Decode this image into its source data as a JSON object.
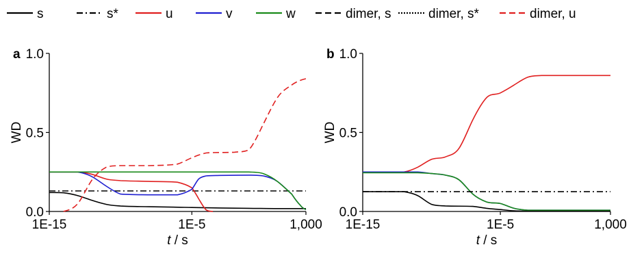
{
  "legend": [
    {
      "label": "s",
      "color": "#000000",
      "dash": "solid"
    },
    {
      "label": "s*",
      "color": "#000000",
      "dash": "dashdot"
    },
    {
      "label": "u",
      "color": "#e01f1f",
      "dash": "solid"
    },
    {
      "label": "v",
      "color": "#1f1fd0",
      "dash": "solid"
    },
    {
      "label": "w",
      "color": "#1a8a1a",
      "dash": "solid"
    },
    {
      "label": "dimer, s",
      "color": "#000000",
      "dash": "dashed"
    },
    {
      "label": "dimer, s*",
      "color": "#000000",
      "dash": "dotted"
    },
    {
      "label": "dimer, u",
      "color": "#e01f1f",
      "dash": "dashed"
    }
  ],
  "chart_data": [
    {
      "panel_label": "a",
      "type": "line",
      "xlabel_italic": "t",
      "xlabel_rest": " / s",
      "ylabel": "WD",
      "xscale": "log",
      "xlim": [
        1e-15,
        1000
      ],
      "ylim": [
        0,
        1
      ],
      "xticks": [
        1e-15,
        1e-05,
        1000
      ],
      "xtick_labels": [
        "1E-15",
        "1E-5",
        "1,000"
      ],
      "yticks": [
        0,
        0.5,
        1
      ],
      "ytick_labels": [
        "0.0",
        "0.5",
        "1.0"
      ],
      "series": [
        {
          "name": "s",
          "color": "#000000",
          "dash": "solid",
          "points": [
            [
              1e-15,
              0.12
            ],
            [
              1e-14,
              0.118
            ],
            [
              1e-13,
              0.1
            ],
            [
              1e-12,
              0.07
            ],
            [
              1e-11,
              0.045
            ],
            [
              1e-10,
              0.034
            ],
            [
              1e-08,
              0.03
            ],
            [
              1e-06,
              0.027
            ],
            [
              1e-05,
              0.025
            ],
            [
              0.001,
              0.022
            ],
            [
              0.1,
              0.02
            ],
            [
              10,
              0.018
            ],
            [
              1000,
              0.018
            ]
          ]
        },
        {
          "name": "s*",
          "color": "#000000",
          "dash": "dashdot",
          "points": [
            [
              1e-15,
              0.13
            ],
            [
              1000,
              0.13
            ]
          ]
        },
        {
          "name": "u",
          "color": "#e01f1f",
          "dash": "solid",
          "points": [
            [
              1e-15,
              0.25
            ],
            [
              1e-13,
              0.25
            ],
            [
              1e-12,
              0.235
            ],
            [
              1e-11,
              0.205
            ],
            [
              1e-10,
              0.195
            ],
            [
              1e-08,
              0.19
            ],
            [
              1e-06,
              0.185
            ],
            [
              1e-05,
              0.15
            ],
            [
              3e-05,
              0.08
            ],
            [
              0.0001,
              0.01
            ],
            [
              0.0003,
              0.0
            ]
          ]
        },
        {
          "name": "v",
          "color": "#1f1fd0",
          "dash": "solid",
          "points": [
            [
              1e-15,
              0.25
            ],
            [
              1e-13,
              0.25
            ],
            [
              1e-12,
              0.22
            ],
            [
              1e-11,
              0.16
            ],
            [
              1e-10,
              0.11
            ],
            [
              1e-08,
              0.105
            ],
            [
              1e-06,
              0.105
            ],
            [
              1e-05,
              0.14
            ],
            [
              3e-05,
              0.205
            ],
            [
              0.0001,
              0.225
            ],
            [
              0.001,
              0.228
            ],
            [
              0.1,
              0.23
            ],
            [
              1,
              0.225
            ],
            [
              10,
              0.19
            ],
            [
              100,
              0.11
            ],
            [
              400,
              0.04
            ],
            [
              1000,
              0.012
            ]
          ]
        },
        {
          "name": "w",
          "color": "#1a8a1a",
          "dash": "solid",
          "points": [
            [
              1e-15,
              0.25
            ],
            [
              1e-05,
              0.25
            ],
            [
              0.1,
              0.25
            ],
            [
              1,
              0.24
            ],
            [
              10,
              0.19
            ],
            [
              100,
              0.11
            ],
            [
              400,
              0.04
            ],
            [
              1000,
              0.012
            ]
          ]
        },
        {
          "name": "dimer, u",
          "color": "#e01f1f",
          "dash": "dashed",
          "points": [
            [
              1e-14,
              0.0
            ],
            [
              1e-13,
              0.05
            ],
            [
              1e-12,
              0.2
            ],
            [
              1e-11,
              0.28
            ],
            [
              1e-10,
              0.29
            ],
            [
              1e-08,
              0.29
            ],
            [
              1e-06,
              0.3
            ],
            [
              1e-05,
              0.34
            ],
            [
              0.0001,
              0.37
            ],
            [
              0.01,
              0.375
            ],
            [
              0.1,
              0.39
            ],
            [
              1,
              0.55
            ],
            [
              10,
              0.72
            ],
            [
              100,
              0.8
            ],
            [
              1000,
              0.84
            ]
          ]
        }
      ]
    },
    {
      "panel_label": "b",
      "type": "line",
      "xlabel_italic": "t",
      "xlabel_rest": " / s",
      "ylabel": "WD",
      "xscale": "log",
      "xlim": [
        1e-15,
        1000
      ],
      "ylim": [
        0,
        1
      ],
      "xticks": [
        1e-15,
        1e-05,
        1000
      ],
      "xtick_labels": [
        "1E-15",
        "1E-5",
        "1,000"
      ],
      "yticks": [
        0,
        0.5,
        1
      ],
      "ytick_labels": [
        "0.0",
        "0.5",
        "1.0"
      ],
      "series": [
        {
          "name": "u",
          "color": "#e01f1f",
          "dash": "solid",
          "points": [
            [
              1e-15,
              0.25
            ],
            [
              1e-12,
              0.25
            ],
            [
              1e-11,
              0.28
            ],
            [
              1e-10,
              0.33
            ],
            [
              1e-09,
              0.345
            ],
            [
              1e-08,
              0.4
            ],
            [
              1e-07,
              0.58
            ],
            [
              1e-06,
              0.72
            ],
            [
              1e-05,
              0.75
            ],
            [
              0.0001,
              0.8
            ],
            [
              0.001,
              0.85
            ],
            [
              0.01,
              0.86
            ],
            [
              1000,
              0.86
            ]
          ]
        },
        {
          "name": "v",
          "color": "#1f1fd0",
          "dash": "solid",
          "points": [
            [
              1e-15,
              0.25
            ],
            [
              1e-11,
              0.25
            ],
            [
              1e-10,
              0.24
            ],
            [
              1e-09,
              0.23
            ],
            [
              1e-08,
              0.2
            ],
            [
              1e-07,
              0.11
            ],
            [
              1e-06,
              0.06
            ],
            [
              1e-05,
              0.05
            ],
            [
              0.0001,
              0.02
            ],
            [
              0.001,
              0.008
            ],
            [
              1000,
              0.008
            ]
          ]
        },
        {
          "name": "w",
          "color": "#1a8a1a",
          "dash": "solid",
          "points": [
            [
              1e-15,
              0.245
            ],
            [
              1e-11,
              0.245
            ],
            [
              1e-10,
              0.24
            ],
            [
              1e-09,
              0.23
            ],
            [
              1e-08,
              0.2
            ],
            [
              1e-07,
              0.11
            ],
            [
              1e-06,
              0.06
            ],
            [
              1e-05,
              0.05
            ],
            [
              0.0001,
              0.02
            ],
            [
              0.001,
              0.008
            ],
            [
              1000,
              0.008
            ]
          ]
        },
        {
          "name": "s",
          "color": "#000000",
          "dash": "solid",
          "points": [
            [
              1e-15,
              0.125
            ],
            [
              1e-12,
              0.125
            ],
            [
              1e-11,
              0.1
            ],
            [
              1e-10,
              0.045
            ],
            [
              1e-09,
              0.035
            ],
            [
              1e-07,
              0.032
            ],
            [
              1e-06,
              0.02
            ],
            [
              1e-05,
              0.012
            ],
            [
              0.0001,
              0.004
            ],
            [
              0.001,
              0.002
            ],
            [
              1000,
              0.002
            ]
          ]
        },
        {
          "name": "s*",
          "color": "#000000",
          "dash": "dashdot",
          "points": [
            [
              1e-15,
              0.125
            ],
            [
              1000,
              0.125
            ]
          ]
        }
      ]
    }
  ]
}
